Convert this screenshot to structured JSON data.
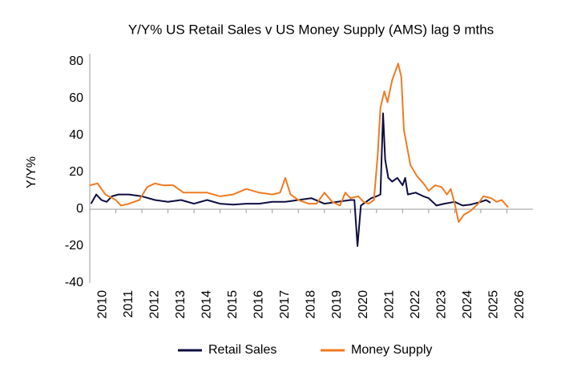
{
  "chart_data": {
    "type": "line",
    "title": "Y/Y% US Retail Sales v US Money Supply (AMS) lag 9 mths",
    "y_label": "Y/Y%",
    "xlim": [
      2010,
      2027
    ],
    "xticks": [
      2010,
      2011,
      2012,
      2013,
      2014,
      2015,
      2016,
      2017,
      2018,
      2019,
      2020,
      2021,
      2022,
      2023,
      2024,
      2025,
      2026
    ],
    "ylim": [
      -40,
      80
    ],
    "yticks": [
      -40,
      -20,
      0,
      20,
      40,
      60,
      80
    ],
    "grid": false,
    "legend": "bottom",
    "series": [
      {
        "name": "Retail Sales",
        "color": "#0d0d40",
        "x": [
          2010.05,
          2010.25,
          2010.45,
          2010.65,
          2010.85,
          2011.1,
          2011.5,
          2012.0,
          2012.5,
          2013.0,
          2013.5,
          2014.0,
          2014.5,
          2015.0,
          2015.5,
          2016.0,
          2016.5,
          2017.0,
          2017.5,
          2018.0,
          2018.5,
          2019.0,
          2019.5,
          2020.0,
          2020.15,
          2020.27,
          2020.4,
          2020.6,
          2020.8,
          2021.0,
          2021.15,
          2021.25,
          2021.33,
          2021.45,
          2021.6,
          2021.8,
          2022.0,
          2022.1,
          2022.2,
          2022.5,
          2022.8,
          2023.0,
          2023.3,
          2023.6,
          2024.0,
          2024.3,
          2024.6,
          2025.0,
          2025.2,
          2025.37
        ],
        "values": [
          3,
          8,
          5,
          4,
          7,
          8,
          8,
          7,
          5,
          4,
          5,
          3,
          5,
          3,
          2.5,
          3,
          3,
          4,
          4,
          5,
          6,
          3,
          4,
          5,
          5,
          -20,
          2,
          4,
          6,
          7,
          8,
          52,
          27,
          17,
          15,
          17,
          13,
          17,
          8,
          9,
          7,
          6,
          2,
          3,
          4,
          2,
          2.5,
          4,
          5,
          3.5
        ]
      },
      {
        "name": "Money Supply",
        "color": "#f07a22",
        "x": [
          2010.0,
          2010.3,
          2010.6,
          2011.0,
          2011.2,
          2011.5,
          2011.9,
          2012.2,
          2012.5,
          2012.8,
          2013.2,
          2013.6,
          2013.9,
          2014.5,
          2015.0,
          2015.5,
          2016.0,
          2016.5,
          2017.0,
          2017.3,
          2017.5,
          2017.7,
          2018.0,
          2018.4,
          2018.7,
          2019.0,
          2019.3,
          2019.6,
          2019.8,
          2020.0,
          2020.3,
          2020.5,
          2020.7,
          2020.9,
          2021.05,
          2021.15,
          2021.3,
          2021.42,
          2021.6,
          2021.83,
          2021.95,
          2022.05,
          2022.3,
          2022.55,
          2022.8,
          2023.0,
          2023.25,
          2023.5,
          2023.7,
          2023.85,
          2024.0,
          2024.15,
          2024.35,
          2024.6,
          2024.9,
          2025.1,
          2025.4,
          2025.6,
          2025.8,
          2026.05
        ],
        "values": [
          13,
          14,
          8,
          5,
          2,
          3,
          5,
          12,
          14,
          13,
          13,
          9,
          9,
          9,
          7,
          8,
          11,
          9,
          8,
          9,
          17,
          8,
          5,
          3,
          3,
          9,
          4,
          2,
          9,
          6,
          7,
          4,
          3,
          5,
          30,
          55,
          64,
          58,
          70,
          79,
          72,
          43,
          24,
          18,
          14,
          10,
          13,
          12,
          8,
          11,
          3,
          -7,
          -3,
          -1,
          3,
          7,
          6,
          4,
          5,
          1
        ]
      }
    ]
  }
}
